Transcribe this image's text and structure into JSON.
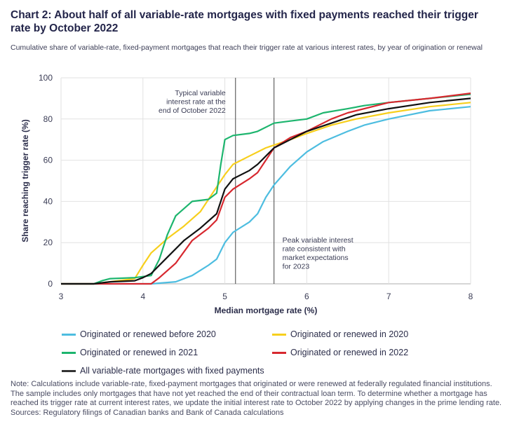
{
  "title": "Chart 2: About half of all variable-rate mortgages with fixed payments reached their trigger rate by October 2022",
  "subtitle": "Cumulative share of variable-rate, fixed-payment mortgages that reach their trigger rate at various interest rates, by year of origination or renewal",
  "note": "Note: Calculations include variable-rate, fixed-payment mortgages that originated or were renewed at federally regulated financial institutions. The sample includes only mortgages that have not yet reached the end of their contractual loan term. To determine whether a mortgage has reached its trigger rate at current interest rates, we update the initial interest rate to October 2022 by applying changes in the prime lending rate.",
  "sources": "Sources: Regulatory filings of Canadian banks and Bank of Canada calculations",
  "chart_data": {
    "type": "line",
    "title": "Chart 2: About half of all variable-rate mortgages with fixed payments reached their trigger rate by October 2022",
    "xlabel": "Median mortgage rate (%)",
    "ylabel": "Share reaching trigger rate (%)",
    "xlim": [
      3,
      8
    ],
    "ylim": [
      0,
      100
    ],
    "xticks": [
      3,
      4,
      5,
      6,
      7,
      8
    ],
    "yticks": [
      0,
      20,
      40,
      60,
      80,
      100
    ],
    "grid": true,
    "legend_position": "bottom",
    "annotations": [
      {
        "x": 5.13,
        "label": [
          "Typical variable",
          "interest rate at the",
          "end of October 2022"
        ]
      },
      {
        "x": 5.6,
        "label": [
          "Peak variable interest",
          "rate consistent with",
          "market expectations",
          "for 2023"
        ]
      }
    ],
    "series": [
      {
        "name": "Originated or renewed before 2020",
        "color": "#4dbde0",
        "points": [
          [
            3,
            0
          ],
          [
            4.1,
            0
          ],
          [
            4.4,
            1
          ],
          [
            4.6,
            4
          ],
          [
            4.8,
            9
          ],
          [
            4.9,
            12
          ],
          [
            5.0,
            20
          ],
          [
            5.1,
            25
          ],
          [
            5.3,
            30
          ],
          [
            5.4,
            34
          ],
          [
            5.5,
            42
          ],
          [
            5.6,
            48
          ],
          [
            5.8,
            57
          ],
          [
            6.0,
            64
          ],
          [
            6.2,
            69
          ],
          [
            6.5,
            74
          ],
          [
            6.7,
            77
          ],
          [
            7.0,
            80
          ],
          [
            7.5,
            84
          ],
          [
            8.0,
            86
          ]
        ]
      },
      {
        "name": "Originated or renewed in 2020",
        "color": "#f7cf1d",
        "points": [
          [
            3,
            0
          ],
          [
            3.4,
            0
          ],
          [
            3.6,
            1
          ],
          [
            3.9,
            2.5
          ],
          [
            4.0,
            9
          ],
          [
            4.1,
            15
          ],
          [
            4.3,
            22
          ],
          [
            4.5,
            28
          ],
          [
            4.7,
            35
          ],
          [
            4.9,
            47
          ],
          [
            5.0,
            53
          ],
          [
            5.1,
            58
          ],
          [
            5.3,
            62
          ],
          [
            5.5,
            66
          ],
          [
            5.8,
            70
          ],
          [
            6.0,
            73
          ],
          [
            6.3,
            77
          ],
          [
            6.6,
            80
          ],
          [
            7.0,
            83
          ],
          [
            7.5,
            86
          ],
          [
            8.0,
            88
          ]
        ]
      },
      {
        "name": "Originated or renewed in 2021",
        "color": "#1db56e",
        "points": [
          [
            3,
            0
          ],
          [
            3.4,
            0
          ],
          [
            3.5,
            1.5
          ],
          [
            3.6,
            2.5
          ],
          [
            3.9,
            3
          ],
          [
            4.1,
            4
          ],
          [
            4.2,
            12
          ],
          [
            4.3,
            24
          ],
          [
            4.4,
            33
          ],
          [
            4.6,
            40
          ],
          [
            4.8,
            41
          ],
          [
            4.9,
            44
          ],
          [
            4.95,
            58
          ],
          [
            5.0,
            70
          ],
          [
            5.1,
            72
          ],
          [
            5.3,
            73
          ],
          [
            5.4,
            74
          ],
          [
            5.6,
            78
          ],
          [
            5.8,
            79
          ],
          [
            6.0,
            80
          ],
          [
            6.2,
            83
          ],
          [
            6.5,
            85
          ],
          [
            6.7,
            86.5
          ],
          [
            7.0,
            88
          ],
          [
            7.5,
            90
          ],
          [
            8.0,
            92
          ]
        ]
      },
      {
        "name": "Originated or renewed in 2022",
        "color": "#d7282f",
        "points": [
          [
            3,
            0
          ],
          [
            4.1,
            0
          ],
          [
            4.2,
            3
          ],
          [
            4.4,
            10
          ],
          [
            4.6,
            21
          ],
          [
            4.8,
            27
          ],
          [
            4.9,
            31
          ],
          [
            5.0,
            42
          ],
          [
            5.1,
            46
          ],
          [
            5.3,
            51
          ],
          [
            5.4,
            54
          ],
          [
            5.6,
            66
          ],
          [
            5.8,
            71
          ],
          [
            6.0,
            74
          ],
          [
            6.3,
            80
          ],
          [
            6.5,
            83
          ],
          [
            6.8,
            86
          ],
          [
            7.0,
            88
          ],
          [
            7.5,
            90
          ],
          [
            8.0,
            92.5
          ]
        ]
      },
      {
        "name": "All variable-rate mortgages with fixed payments",
        "color": "#111111",
        "points": [
          [
            3,
            0
          ],
          [
            3.4,
            0
          ],
          [
            3.6,
            1
          ],
          [
            3.9,
            1.5
          ],
          [
            4.0,
            3
          ],
          [
            4.1,
            5
          ],
          [
            4.3,
            13
          ],
          [
            4.5,
            21
          ],
          [
            4.7,
            27
          ],
          [
            4.9,
            34
          ],
          [
            5.0,
            46
          ],
          [
            5.1,
            51
          ],
          [
            5.3,
            55
          ],
          [
            5.4,
            58
          ],
          [
            5.6,
            66
          ],
          [
            5.8,
            70
          ],
          [
            6.0,
            74
          ],
          [
            6.3,
            78
          ],
          [
            6.6,
            82
          ],
          [
            7.0,
            85
          ],
          [
            7.5,
            88
          ],
          [
            8.0,
            90
          ]
        ]
      }
    ]
  }
}
